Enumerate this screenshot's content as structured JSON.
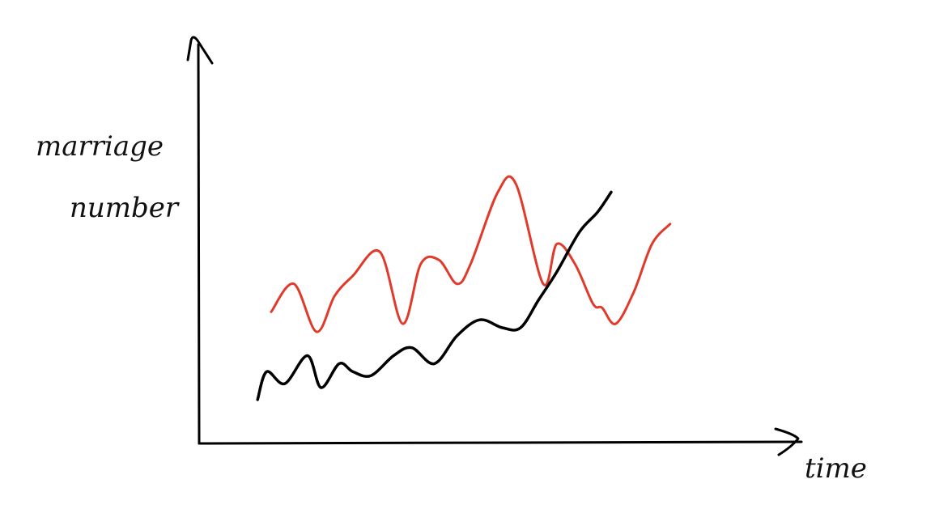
{
  "chart_data": {
    "type": "line",
    "title": "",
    "xlabel": "time",
    "ylabel_lines": [
      "marriage",
      "number"
    ],
    "grid": false,
    "legend": "none",
    "x_ticks": "none",
    "y_ticks": "none",
    "xlim": [
      0,
      100
    ],
    "ylim": [
      0,
      100
    ],
    "series": [
      {
        "color": "#e03a2a",
        "points": [
          [
            0,
            33
          ],
          [
            5,
            40
          ],
          [
            10,
            28
          ],
          [
            14,
            37
          ],
          [
            18,
            42
          ],
          [
            24,
            48
          ],
          [
            29,
            30
          ],
          [
            33,
            45
          ],
          [
            37,
            46
          ],
          [
            41,
            40
          ],
          [
            44,
            45
          ],
          [
            50,
            63
          ],
          [
            54,
            65
          ],
          [
            60,
            40
          ],
          [
            63,
            50
          ],
          [
            67,
            45
          ],
          [
            71,
            35
          ],
          [
            73,
            34
          ],
          [
            76,
            30
          ],
          [
            80,
            38
          ],
          [
            84,
            50
          ],
          [
            88,
            55
          ]
        ]
      },
      {
        "color": "#000000",
        "points": [
          [
            -3,
            11
          ],
          [
            -1,
            18
          ],
          [
            3,
            15
          ],
          [
            8,
            22
          ],
          [
            11,
            14
          ],
          [
            15,
            20
          ],
          [
            18,
            18
          ],
          [
            22,
            17
          ],
          [
            27,
            22
          ],
          [
            31,
            24
          ],
          [
            36,
            20
          ],
          [
            41,
            27
          ],
          [
            46,
            31
          ],
          [
            51,
            29
          ],
          [
            55,
            29
          ],
          [
            59,
            36
          ],
          [
            63,
            43
          ],
          [
            68,
            53
          ],
          [
            72,
            58
          ],
          [
            75,
            63
          ]
        ]
      }
    ]
  }
}
